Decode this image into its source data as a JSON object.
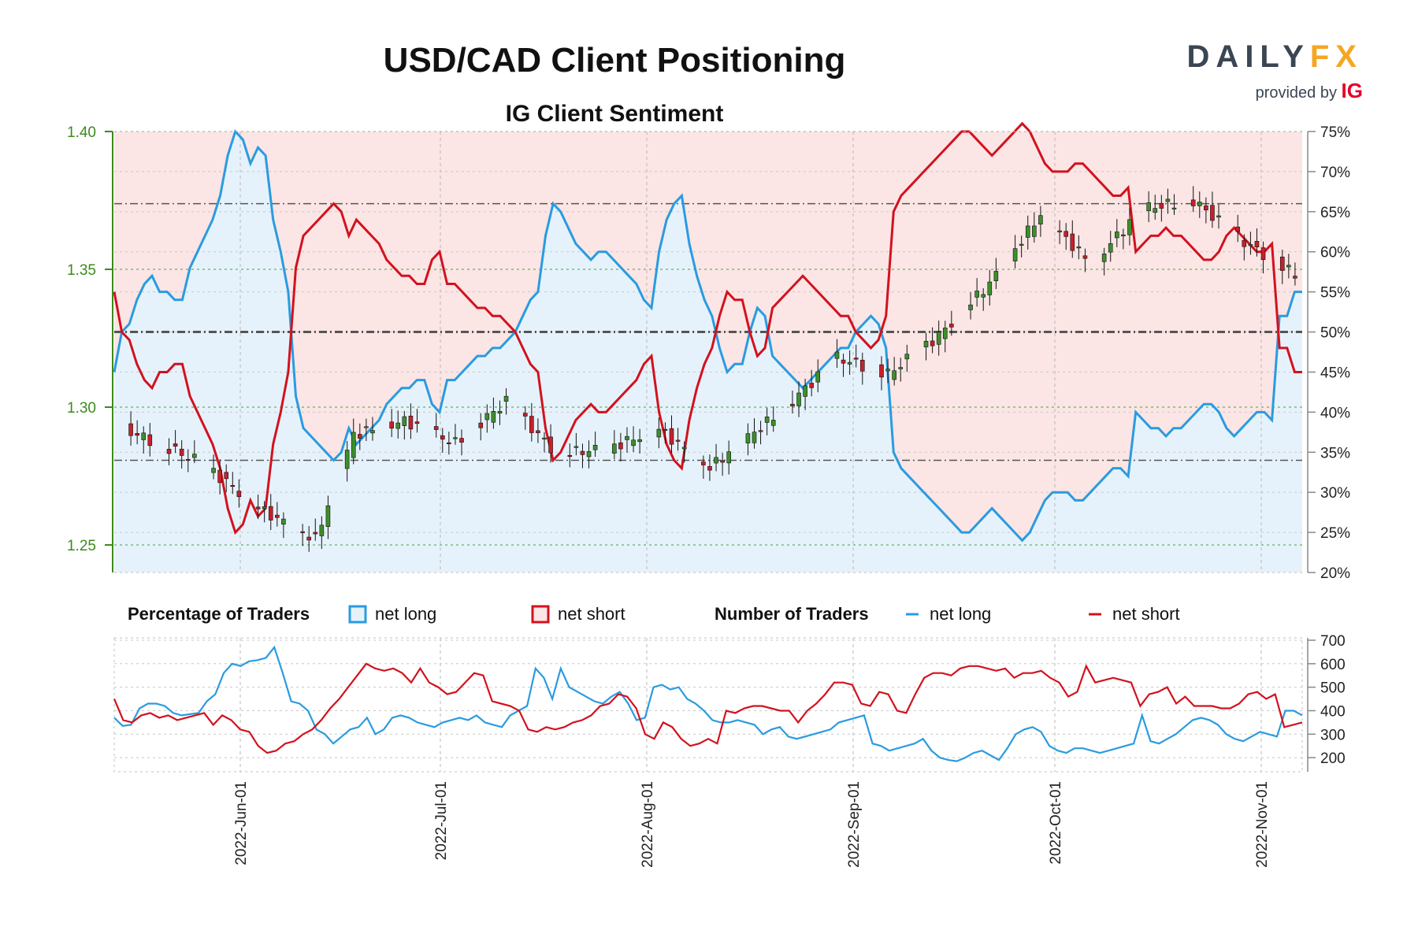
{
  "chart_data": {
    "type": "candlestick+area+line",
    "title": "USD/CAD Client Positioning",
    "subtitle": "IG Client Sentiment",
    "price_axis": {
      "ticks": [
        "1.40",
        "1.35",
        "1.30",
        "1.25"
      ],
      "ylim": [
        1.24,
        1.4
      ],
      "color": "#3c8a1a"
    },
    "pct_axis": {
      "ticks": [
        "75%",
        "70%",
        "65%",
        "60%",
        "55%",
        "50%",
        "45%",
        "40%",
        "35%",
        "30%",
        "25%",
        "20%"
      ],
      "ylim": [
        20,
        75
      ]
    },
    "traders_axis": {
      "ticks": [
        "700",
        "600",
        "500",
        "400",
        "300",
        "200"
      ],
      "ylim": [
        140,
        710
      ]
    },
    "x_dates": [
      "2022-Jun-01",
      "2022-Jul-01",
      "2022-Aug-01",
      "2022-Sep-01",
      "2022-Oct-01",
      "2022-Nov-01"
    ],
    "net_long_pct": [
      45,
      50,
      51,
      54,
      56,
      57,
      55,
      55,
      54,
      54,
      58,
      60,
      62,
      64,
      67,
      72,
      75,
      74,
      71,
      73,
      72,
      64,
      60,
      55,
      42,
      38,
      37,
      36,
      35,
      34,
      35,
      38,
      36,
      37,
      38,
      39,
      41,
      42,
      43,
      43,
      44,
      44,
      41,
      40,
      44,
      44,
      45,
      46,
      47,
      47,
      48,
      48,
      49,
      50,
      52,
      54,
      55,
      62,
      66,
      65,
      63,
      61,
      60,
      59,
      60,
      60,
      59,
      58,
      57,
      56,
      54,
      53,
      60,
      64,
      66,
      67,
      61,
      57,
      54,
      52,
      48,
      45,
      46,
      46,
      50,
      53,
      52,
      47,
      46,
      45,
      44,
      43,
      44,
      45,
      46,
      47,
      48,
      48,
      50,
      51,
      52,
      51,
      48,
      35,
      33,
      32,
      31,
      30,
      29,
      28,
      27,
      26,
      25,
      25,
      26,
      27,
      28,
      27,
      26,
      25,
      24,
      25,
      27,
      29,
      30,
      30,
      30,
      29,
      29,
      30,
      31,
      32,
      33,
      33,
      32,
      40,
      39,
      38,
      38,
      37,
      38,
      38,
      39,
      40,
      41,
      41,
      40,
      38,
      37,
      38,
      39,
      40,
      40,
      39,
      52,
      52,
      55,
      55
    ],
    "net_short_pct": [
      55,
      50,
      49,
      46,
      44,
      43,
      45,
      45,
      46,
      46,
      42,
      40,
      38,
      36,
      33,
      28,
      25,
      26,
      29,
      27,
      28,
      36,
      40,
      45,
      58,
      62,
      63,
      64,
      65,
      66,
      65,
      62,
      64,
      63,
      62,
      61,
      59,
      58,
      57,
      57,
      56,
      56,
      59,
      60,
      56,
      56,
      55,
      54,
      53,
      53,
      52,
      52,
      51,
      50,
      48,
      46,
      45,
      38,
      34,
      35,
      37,
      39,
      40,
      41,
      40,
      40,
      41,
      42,
      43,
      44,
      46,
      47,
      40,
      36,
      34,
      33,
      39,
      43,
      46,
      48,
      52,
      55,
      54,
      54,
      50,
      47,
      48,
      53,
      54,
      55,
      56,
      57,
      56,
      55,
      54,
      53,
      52,
      52,
      50,
      49,
      48,
      49,
      52,
      65,
      67,
      68,
      69,
      70,
      71,
      72,
      73,
      74,
      75,
      75,
      74,
      73,
      72,
      73,
      74,
      75,
      76,
      75,
      73,
      71,
      70,
      70,
      70,
      71,
      71,
      70,
      69,
      68,
      67,
      67,
      68,
      60,
      61,
      62,
      62,
      63,
      62,
      62,
      61,
      60,
      59,
      59,
      60,
      62,
      63,
      62,
      61,
      60,
      60,
      61,
      48,
      48,
      45,
      45
    ],
    "net_long_traders": [
      370,
      335,
      340,
      410,
      430,
      430,
      420,
      390,
      380,
      385,
      390,
      440,
      470,
      560,
      600,
      590,
      610,
      615,
      625,
      670,
      560,
      440,
      430,
      400,
      320,
      300,
      260,
      290,
      320,
      330,
      370,
      300,
      320,
      370,
      380,
      370,
      350,
      340,
      330,
      350,
      360,
      370,
      360,
      380,
      350,
      340,
      330,
      380,
      400,
      420,
      580,
      540,
      450,
      580,
      500,
      480,
      460,
      440,
      430,
      460,
      480,
      430,
      360,
      370,
      500,
      510,
      490,
      500,
      450,
      430,
      400,
      360,
      350,
      350,
      360,
      350,
      340,
      300,
      320,
      330,
      290,
      280,
      290,
      300,
      310,
      320,
      350,
      360,
      370,
      380,
      260,
      250,
      230,
      240,
      250,
      260,
      280,
      230,
      200,
      190,
      185,
      200,
      220,
      230,
      210,
      190,
      240,
      300,
      320,
      330,
      310,
      250,
      230,
      220,
      240,
      240,
      230,
      220,
      230,
      240,
      250,
      260,
      380,
      270,
      260,
      280,
      300,
      330,
      360,
      370,
      360,
      340,
      300,
      280,
      270,
      290,
      310,
      300,
      290,
      400,
      400,
      380
    ],
    "net_short_traders": [
      450,
      360,
      350,
      380,
      390,
      370,
      380,
      360,
      370,
      380,
      390,
      340,
      380,
      360,
      320,
      310,
      250,
      220,
      230,
      260,
      270,
      300,
      320,
      360,
      410,
      450,
      500,
      550,
      600,
      580,
      570,
      580,
      560,
      520,
      580,
      520,
      500,
      470,
      480,
      520,
      560,
      550,
      440,
      430,
      420,
      400,
      320,
      310,
      330,
      320,
      330,
      350,
      360,
      380,
      420,
      430,
      470,
      460,
      410,
      300,
      280,
      350,
      330,
      280,
      250,
      260,
      280,
      260,
      400,
      390,
      410,
      420,
      420,
      410,
      400,
      400,
      350,
      400,
      430,
      470,
      520,
      520,
      510,
      430,
      420,
      480,
      470,
      400,
      390,
      470,
      540,
      560,
      560,
      550,
      580,
      590,
      590,
      580,
      570,
      580,
      540,
      560,
      560,
      570,
      540,
      520,
      460,
      480,
      590,
      520,
      530,
      540,
      530,
      520,
      420,
      470,
      480,
      500,
      430,
      460,
      420,
      420,
      420,
      410,
      410,
      430,
      470,
      480,
      450,
      470,
      330,
      340,
      350
    ],
    "sentiment_levels_pct": [
      66,
      50,
      34
    ],
    "price_ref_level": 1.35,
    "colors": {
      "net_long": "#2a9be0",
      "net_short": "#d2121e",
      "up_candle": "#3d8f2b",
      "down_candle": "#c8202a",
      "long_fill": "#e6f2fb",
      "short_fill": "#fbe5e5"
    }
  },
  "legend": {
    "pct_label": "Percentage of Traders",
    "pct_long": "net long",
    "pct_short": "net short",
    "num_label": "Number of Traders",
    "num_long": "net long",
    "num_short": "net short"
  },
  "logo": {
    "brand_a": "DAILY",
    "brand_b": "FX",
    "provided": "provided by",
    "ig": "IG"
  }
}
